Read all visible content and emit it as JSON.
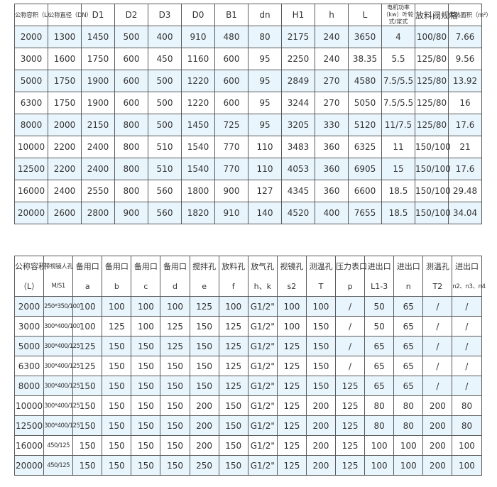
{
  "table1": {
    "headers": [
      "公称容积（L）",
      "公称直径（DN）",
      "D1",
      "D2",
      "D3",
      "D0",
      "B1",
      "dn",
      "H1",
      "h",
      "L",
      "电机功率（kw）叶轮式/浆式",
      "放料阀规格",
      "传热面积（m²）"
    ],
    "rows": [
      [
        "2000",
        "1300",
        "1450",
        "500",
        "400",
        "910",
        "480",
        "80",
        "2175",
        "240",
        "3650",
        "4",
        "100/80",
        "7.66"
      ],
      [
        "3000",
        "1600",
        "1750",
        "600",
        "450",
        "1160",
        "600",
        "95",
        "2250",
        "240",
        "38.35",
        "5.5",
        "125/80",
        "9.56"
      ],
      [
        "5000",
        "1750",
        "1900",
        "600",
        "500",
        "1220",
        "600",
        "95",
        "2849",
        "270",
        "4580",
        "7.5/5.5",
        "125/80",
        "13.92"
      ],
      [
        "6300",
        "1750",
        "1900",
        "600",
        "500",
        "1220",
        "600",
        "95",
        "3244",
        "270",
        "5050",
        "7.5/5.5",
        "125/80",
        "16"
      ],
      [
        "8000",
        "2000",
        "2150",
        "800",
        "500",
        "1450",
        "725",
        "95",
        "3205",
        "330",
        "5120",
        "11/7.5",
        "125/80",
        "17.6"
      ],
      [
        "10000",
        "2200",
        "2400",
        "800",
        "510",
        "1540",
        "770",
        "110",
        "3483",
        "360",
        "6325",
        "11",
        "150/100",
        "21"
      ],
      [
        "12500",
        "2200",
        "2400",
        "800",
        "510",
        "1540",
        "770",
        "110",
        "4053",
        "360",
        "6905",
        "15",
        "150/100",
        "17.6"
      ],
      [
        "16000",
        "2400",
        "2550",
        "800",
        "560",
        "1800",
        "900",
        "127",
        "4345",
        "360",
        "6600",
        "18.5",
        "150/100",
        "29.48"
      ],
      [
        "20000",
        "2600",
        "2800",
        "900",
        "560",
        "1820",
        "910",
        "140",
        "4520",
        "400",
        "7655",
        "18.5",
        "150/100",
        "34.04"
      ]
    ]
  },
  "table2": {
    "headers_top": [
      "公称容积",
      "带视镜人孔",
      "备用口",
      "备用口",
      "备用口",
      "备用口",
      "搅拌孔",
      "放料孔",
      "放气孔",
      "视镜孔",
      "测温孔",
      "压力表口",
      "进出口",
      "进出口",
      "测温孔",
      "进出口"
    ],
    "headers_bottom": [
      "（L）",
      "M/S1",
      "a",
      "b",
      "c",
      "d",
      "e",
      "f",
      "h、k",
      "s2",
      "T",
      "p",
      "L1-3",
      "n",
      "T2",
      "n2、n3、n4"
    ],
    "rows": [
      [
        "2000",
        "250*350/100",
        "100",
        "100",
        "100",
        "100",
        "125",
        "100",
        "G1/2\"",
        "100",
        "100",
        "/",
        "50",
        "65",
        "/",
        "/"
      ],
      [
        "3000",
        "300*400/100",
        "100",
        "125",
        "100",
        "125",
        "150",
        "125",
        "G1/2\"",
        "100",
        "150",
        "/",
        "50",
        "65",
        "/",
        "/"
      ],
      [
        "5000",
        "300*400/125",
        "125",
        "150",
        "150",
        "125",
        "150",
        "125",
        "G1/2\"",
        "125",
        "150",
        "/",
        "65",
        "65",
        "/",
        "/"
      ],
      [
        "6300",
        "300*400/125",
        "125",
        "150",
        "150",
        "150",
        "150",
        "125",
        "G1/2\"",
        "125",
        "150",
        "/",
        "65",
        "65",
        "/",
        "/"
      ],
      [
        "8000",
        "300*400/125",
        "150",
        "150",
        "150",
        "150",
        "150",
        "125",
        "G1/2\"",
        "125",
        "150",
        "125",
        "65",
        "65",
        "/",
        "/"
      ],
      [
        "10000",
        "300*400/125",
        "150",
        "150",
        "150",
        "150",
        "200",
        "150",
        "G1/2\"",
        "125",
        "200",
        "125",
        "80",
        "80",
        "200",
        "80"
      ],
      [
        "12500",
        "300*400/125",
        "150",
        "150",
        "150",
        "150",
        "200",
        "150",
        "G1/2\"",
        "125",
        "200",
        "125",
        "80",
        "80",
        "200",
        "80"
      ],
      [
        "16000",
        "450/125",
        "150",
        "150",
        "150",
        "150",
        "200",
        "150",
        "G1/2\"",
        "125",
        "200",
        "125",
        "100",
        "100",
        "200",
        "100"
      ],
      [
        "20000",
        "450/125",
        "150",
        "150",
        "150",
        "150",
        "250",
        "150",
        "G1/2\"",
        "125",
        "200",
        "125",
        "100",
        "100",
        "200",
        "100"
      ]
    ]
  },
  "colors": {
    "row_alt": "#e9f5fc",
    "border": "#5a5a5a"
  }
}
